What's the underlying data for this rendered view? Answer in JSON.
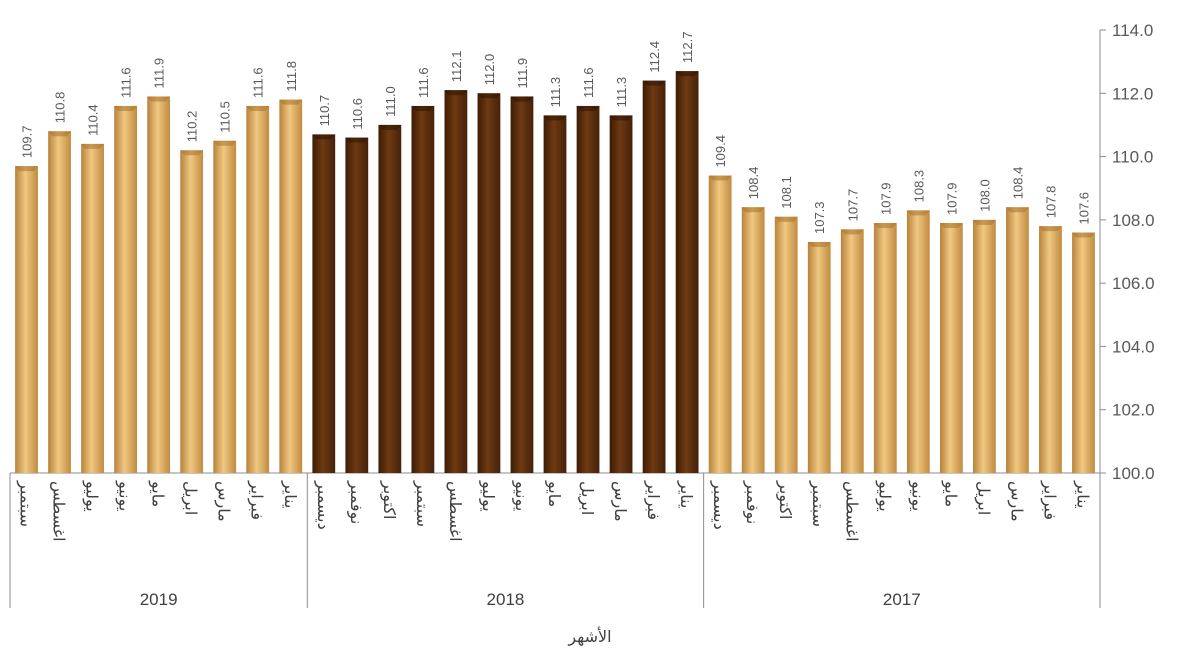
{
  "chart_data": {
    "type": "bar",
    "xlabel": "الأشهر",
    "ylim": [
      100,
      114
    ],
    "yticks": [
      "100.0",
      "102.0",
      "104.0",
      "106.0",
      "108.0",
      "110.0",
      "112.0",
      "114.0"
    ],
    "axis_side": "right",
    "direction": "right-to-left",
    "colors": {
      "light": "#d9a85a",
      "dark": "#5a2e0a"
    },
    "groups": [
      {
        "year": "2017",
        "color": "light",
        "months": [
          "يناير",
          "فبراير",
          "مارس",
          "ابريل",
          "مايو",
          "يونيو",
          "يوليو",
          "اغسطس",
          "سبتمبر",
          "اكتوبر",
          "نوفمبر",
          "ديسمبر"
        ],
        "values": [
          107.6,
          107.8,
          108.4,
          108.0,
          107.9,
          108.3,
          107.9,
          107.7,
          107.3,
          108.1,
          108.4,
          109.4
        ]
      },
      {
        "year": "2018",
        "color": "dark",
        "months": [
          "يناير",
          "فبراير",
          "مارس",
          "ابريل",
          "مايو",
          "يونيو",
          "يوليو",
          "اغسطس",
          "سبتمبر",
          "اكتوبر",
          "نوفمبر",
          "ديسمبر"
        ],
        "values": [
          112.7,
          112.4,
          111.3,
          111.6,
          111.3,
          111.9,
          112.0,
          112.1,
          111.6,
          111.0,
          110.6,
          110.7
        ]
      },
      {
        "year": "2019",
        "color": "light",
        "months": [
          "يناير",
          "فبراير",
          "مارس",
          "ابريل",
          "مايو",
          "يونيو",
          "يوليو",
          "اغسطس",
          "سبتمبر"
        ],
        "values": [
          111.8,
          111.6,
          110.5,
          110.2,
          111.9,
          111.6,
          110.4,
          110.8,
          109.7
        ]
      }
    ]
  }
}
